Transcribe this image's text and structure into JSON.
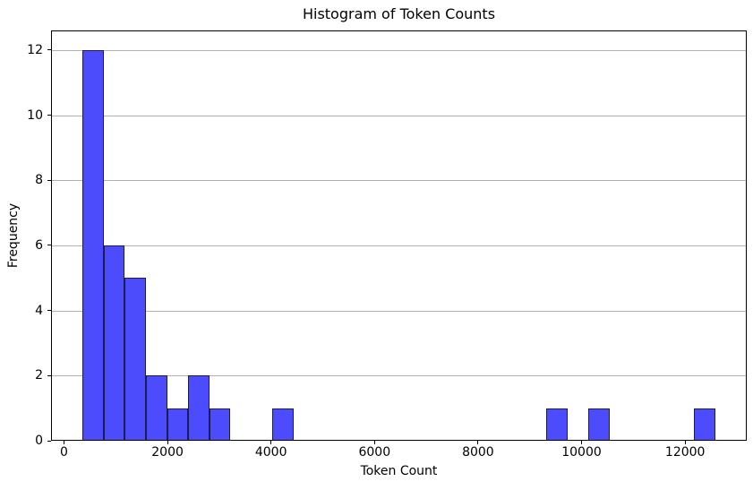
{
  "chart_data": {
    "type": "bar",
    "subtype": "histogram",
    "title": "Histogram of Token Counts",
    "xlabel": "Token Count",
    "ylabel": "Frequency",
    "bins": {
      "start": 360,
      "width": 407.33,
      "count": 30
    },
    "counts": [
      12,
      6,
      5,
      2,
      1,
      2,
      1,
      0,
      0,
      1,
      0,
      0,
      0,
      0,
      0,
      0,
      0,
      0,
      0,
      0,
      0,
      0,
      1,
      0,
      1,
      0,
      0,
      0,
      0,
      1
    ],
    "total_observations": 33,
    "xticks": [
      0,
      2000,
      4000,
      6000,
      8000,
      10000,
      12000
    ],
    "yticks": [
      0,
      2,
      4,
      6,
      8,
      10,
      12
    ],
    "xlim": [
      -251,
      13191
    ],
    "ylim": [
      0,
      12.6
    ],
    "grid": "horizontal-y-only",
    "legend": "none",
    "colors": {
      "bar_fill": "#4c4cfc",
      "bar_edge": "#1c1c54",
      "gridline": "#b2b2b2",
      "spine": "#000000",
      "text": "#000000",
      "background": "#ffffff"
    }
  }
}
